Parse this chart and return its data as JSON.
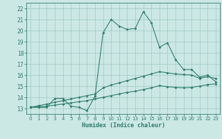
{
  "title": "",
  "xlabel": "Humidex (Indice chaleur)",
  "x": [
    0,
    1,
    2,
    3,
    4,
    5,
    6,
    7,
    8,
    9,
    10,
    11,
    12,
    13,
    14,
    15,
    16,
    17,
    18,
    19,
    20,
    21,
    22,
    23
  ],
  "line1": [
    13.1,
    13.1,
    13.1,
    13.9,
    13.9,
    13.2,
    13.1,
    12.8,
    14.1,
    19.8,
    21.0,
    20.4,
    20.1,
    20.2,
    21.7,
    20.7,
    18.5,
    18.9,
    17.4,
    16.5,
    16.5,
    15.8,
    16.0,
    15.4
  ],
  "line2": [
    13.1,
    13.25,
    13.4,
    13.55,
    13.7,
    13.85,
    14.0,
    14.15,
    14.3,
    14.85,
    15.1,
    15.3,
    15.5,
    15.7,
    15.9,
    16.1,
    16.3,
    16.2,
    16.1,
    16.05,
    16.0,
    15.7,
    15.85,
    15.7
  ],
  "line3": [
    13.1,
    13.15,
    13.2,
    13.3,
    13.4,
    13.5,
    13.6,
    13.7,
    13.85,
    14.0,
    14.15,
    14.3,
    14.45,
    14.55,
    14.7,
    14.85,
    15.05,
    14.95,
    14.9,
    14.85,
    14.9,
    15.0,
    15.15,
    15.2
  ],
  "line_color": "#2d7d6e",
  "bg_color": "#cce8e4",
  "grid_color": "#9dc8c2",
  "ylim": [
    12.5,
    22.5
  ],
  "yticks": [
    13,
    14,
    15,
    16,
    17,
    18,
    19,
    20,
    21,
    22
  ],
  "xticks": [
    0,
    1,
    2,
    3,
    4,
    5,
    6,
    7,
    8,
    9,
    10,
    11,
    12,
    13,
    14,
    15,
    16,
    17,
    18,
    19,
    20,
    21,
    22,
    23
  ]
}
